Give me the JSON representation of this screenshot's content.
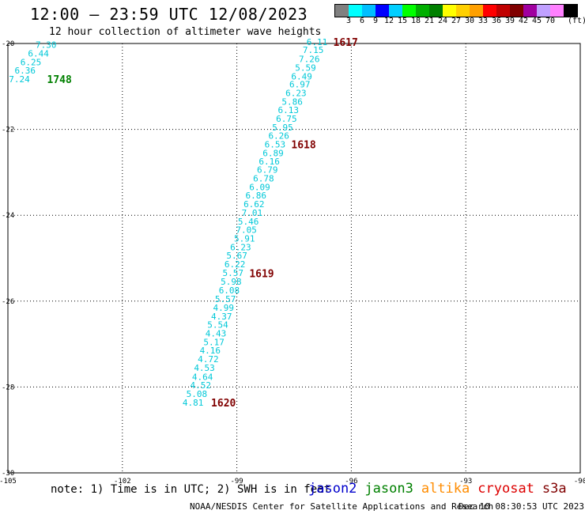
{
  "header": {
    "title": "12:00 – 23:59 UTC 12/08/2023",
    "subtitle": "12 hour collection of altimeter wave heights"
  },
  "legend": {
    "colors": [
      "#808080",
      "#00ffff",
      "#00bfff",
      "#0000ff",
      "#00cfff",
      "#00ff00",
      "#00b000",
      "#008000",
      "#ffff00",
      "#ffd000",
      "#ffa000",
      "#ff0000",
      "#c00000",
      "#800000",
      "#a000a0",
      "#c0a0ff",
      "#ff80ff",
      "#000000"
    ],
    "labels": [
      "3",
      "6",
      "9",
      "12",
      "15",
      "18",
      "21",
      "24",
      "27",
      "30",
      "33",
      "36",
      "39",
      "42",
      "45",
      "70"
    ],
    "unit": "(ft)"
  },
  "footer": {
    "note": "note: 1) Time is in UTC; 2) SWH is in feet",
    "satellites": [
      {
        "name": "jason2",
        "color": "#0000cc"
      },
      {
        "name": "jason3",
        "color": "#008000"
      },
      {
        "name": "altika",
        "color": "#ff8c00"
      },
      {
        "name": "cryosat",
        "color": "#dd0000"
      },
      {
        "name": "s3a",
        "color": "#800000"
      }
    ],
    "credit": "NOAA/NESDIS Center for Satellite Applications and Research",
    "timestamp": "Dec 10 08:30:53 UTC 2023"
  },
  "chart_data": {
    "type": "scatter",
    "xlim": [
      -105,
      -90
    ],
    "ylim": [
      -30,
      -20
    ],
    "x_ticks": [
      -105,
      -102,
      -99,
      -96,
      -93,
      -90
    ],
    "x_tick_labels": [
      "-105",
      "-102",
      "-99",
      "-96",
      "-93",
      "-90"
    ],
    "y_ticks": [
      -20,
      -22,
      -24,
      -26,
      -28,
      -30
    ],
    "y_tick_labels": [
      "-20",
      "-22",
      "-24",
      "-26",
      "-28",
      "-30"
    ],
    "grid": true,
    "series": [
      {
        "color": "#00c8d8",
        "points": [
          {
            "x": -96.9,
            "y": -19.96,
            "v": "6.11"
          },
          {
            "x": -97.0,
            "y": -20.15,
            "v": "7.15"
          },
          {
            "x": -97.1,
            "y": -20.36,
            "v": "7.26"
          },
          {
            "x": -97.2,
            "y": -20.56,
            "v": "5.59"
          },
          {
            "x": -97.3,
            "y": -20.76,
            "v": "6.49"
          },
          {
            "x": -97.35,
            "y": -20.95,
            "v": "6.97"
          },
          {
            "x": -97.45,
            "y": -21.15,
            "v": "6.23"
          },
          {
            "x": -97.55,
            "y": -21.35,
            "v": "5.86"
          },
          {
            "x": -97.65,
            "y": -21.55,
            "v": "6.13"
          },
          {
            "x": -97.7,
            "y": -21.75,
            "v": "6.75"
          },
          {
            "x": -97.8,
            "y": -21.95,
            "v": "5.95"
          },
          {
            "x": -97.9,
            "y": -22.15,
            "v": "6.26"
          },
          {
            "x": -98.0,
            "y": -22.35,
            "v": "6.53"
          },
          {
            "x": -98.05,
            "y": -22.55,
            "v": "6.89"
          },
          {
            "x": -98.15,
            "y": -22.74,
            "v": "6.16"
          },
          {
            "x": -98.2,
            "y": -22.94,
            "v": "6.79"
          },
          {
            "x": -98.3,
            "y": -23.14,
            "v": "6.78"
          },
          {
            "x": -98.4,
            "y": -23.34,
            "v": "6.09"
          },
          {
            "x": -98.5,
            "y": -23.54,
            "v": "6.86"
          },
          {
            "x": -98.55,
            "y": -23.74,
            "v": "6.62"
          },
          {
            "x": -98.6,
            "y": -23.94,
            "v": "7.01"
          },
          {
            "x": -98.7,
            "y": -24.14,
            "v": "5.46"
          },
          {
            "x": -98.75,
            "y": -24.34,
            "v": "7.05"
          },
          {
            "x": -98.8,
            "y": -24.54,
            "v": "5.91"
          },
          {
            "x": -98.9,
            "y": -24.74,
            "v": "6.23"
          },
          {
            "x": -99.0,
            "y": -24.94,
            "v": "5.67"
          },
          {
            "x": -99.05,
            "y": -25.14,
            "v": "6.22"
          },
          {
            "x": -99.1,
            "y": -25.34,
            "v": "5.57"
          },
          {
            "x": -99.15,
            "y": -25.54,
            "v": "5.98"
          },
          {
            "x": -99.2,
            "y": -25.75,
            "v": "6.08"
          },
          {
            "x": -99.3,
            "y": -25.95,
            "v": "5.57"
          },
          {
            "x": -99.35,
            "y": -26.15,
            "v": "4.99"
          },
          {
            "x": -99.4,
            "y": -26.35,
            "v": "4.37"
          },
          {
            "x": -99.5,
            "y": -26.55,
            "v": "5.54"
          },
          {
            "x": -99.55,
            "y": -26.75,
            "v": "4.43"
          },
          {
            "x": -99.6,
            "y": -26.95,
            "v": "5.17"
          },
          {
            "x": -99.7,
            "y": -27.15,
            "v": "4.16"
          },
          {
            "x": -99.75,
            "y": -27.35,
            "v": "4.72"
          },
          {
            "x": -99.85,
            "y": -27.55,
            "v": "4.53"
          },
          {
            "x": -99.9,
            "y": -27.76,
            "v": "4.64"
          },
          {
            "x": -99.95,
            "y": -27.96,
            "v": "4.52"
          },
          {
            "x": -100.05,
            "y": -28.16,
            "v": "5.08"
          },
          {
            "x": -100.15,
            "y": -28.36,
            "v": "4.81"
          },
          {
            "x": -104.0,
            "y": -20.03,
            "v": "7.30"
          },
          {
            "x": -104.2,
            "y": -20.23,
            "v": "6.44"
          },
          {
            "x": -104.4,
            "y": -20.43,
            "v": "6.25"
          },
          {
            "x": -104.55,
            "y": -20.63,
            "v": "6.36"
          },
          {
            "x": -104.7,
            "y": -20.83,
            "v": "7.24"
          }
        ]
      }
    ],
    "annotations": [
      {
        "text": "1617",
        "x": -96.15,
        "y": -19.96,
        "color": "#800000"
      },
      {
        "text": "1618",
        "x": -97.25,
        "y": -22.35,
        "color": "#800000"
      },
      {
        "text": "1619",
        "x": -98.35,
        "y": -25.35,
        "color": "#800000"
      },
      {
        "text": "1620",
        "x": -99.35,
        "y": -28.36,
        "color": "#800000"
      },
      {
        "text": "1748",
        "x": -103.65,
        "y": -20.83,
        "color": "#008000"
      }
    ]
  }
}
